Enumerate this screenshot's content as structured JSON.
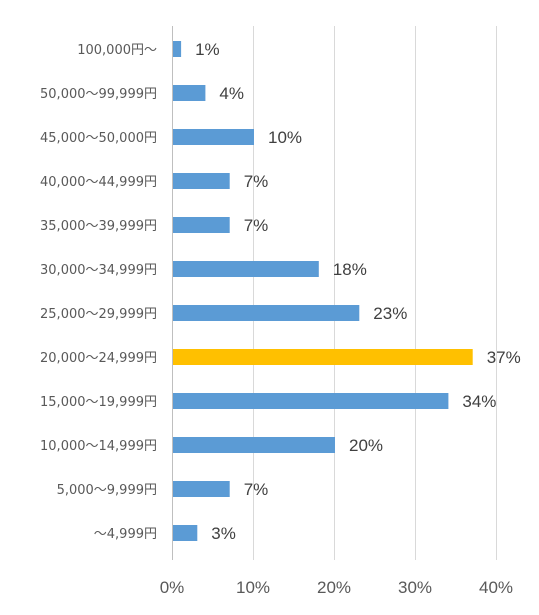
{
  "chart_data": {
    "type": "bar",
    "orientation": "horizontal",
    "categories": [
      "100,000円～",
      "50,000～99,999円",
      "45,000～50,000円",
      "40,000～44,999円",
      "35,000～39,999円",
      "30,000～34,999円",
      "25,000～29,999円",
      "20,000～24,999円",
      "15,000～19,999円",
      "10,000～14,999円",
      "5,000～9,999円",
      "～4,999円"
    ],
    "values": [
      1,
      4,
      10,
      7,
      7,
      18,
      23,
      37,
      34,
      20,
      7,
      3
    ],
    "value_labels": [
      "1%",
      "4%",
      "10%",
      "7%",
      "7%",
      "18%",
      "23%",
      "37%",
      "34%",
      "20%",
      "7%",
      "3%"
    ],
    "xlim": [
      0,
      40
    ],
    "x_ticks": [
      0,
      10,
      20,
      30,
      40
    ],
    "x_tick_labels": [
      "0%",
      "10%",
      "20%",
      "30%",
      "40%"
    ],
    "grid": "vertical",
    "legend": "none",
    "colors": {
      "default": "#5b9bd5",
      "highlight": "#ffc000"
    },
    "highlight_category": "20,000～24,999円"
  }
}
